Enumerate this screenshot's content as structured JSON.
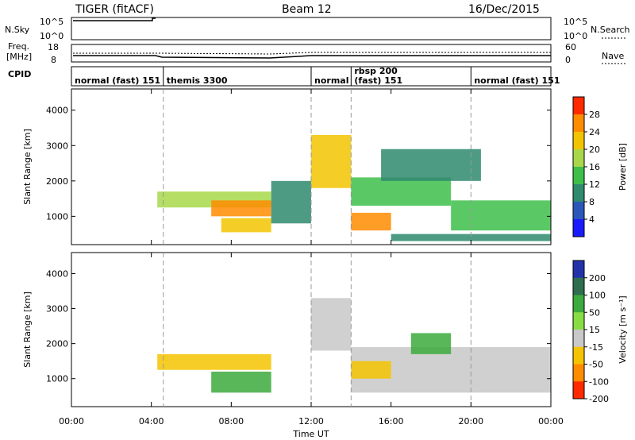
{
  "header": {
    "title": "TIGER (fitACF)",
    "beam": "Beam 12",
    "date": "16/Dec/2015"
  },
  "top_panels": {
    "nsky_label": "N.Sky",
    "nsky_ticks": [
      "10^5",
      "10^0"
    ],
    "nsearch_label": "N.Search",
    "nsearch_ticks": [
      "10^5",
      "10^0"
    ],
    "freq_label_1": "Freq.",
    "freq_label_2": "[MHz]",
    "freq_ticks": [
      "18",
      "8"
    ],
    "nave_label": "Nave",
    "nave_ticks": [
      "60",
      "0"
    ],
    "cpid_label": "CPID"
  },
  "modes": [
    {
      "label": "normal (fast) 151",
      "start_h": 0.0
    },
    {
      "label": "themis 3300",
      "start_h": 4.6
    },
    {
      "label": "normal",
      "start_h": 12.0
    },
    {
      "label": "rbsp 200",
      "start_h": 14.0,
      "sub": "(fast) 151"
    },
    {
      "label": "normal (fast) 151",
      "start_h": 20.0
    }
  ],
  "chart_data": [
    {
      "type": "heatmap",
      "title": "",
      "xlabel": "Time UT",
      "ylabel": "Slant Range [km]",
      "xlim": [
        0,
        24
      ],
      "ylim": [
        200,
        4600
      ],
      "x_ticks": [
        "00:00",
        "04:00",
        "08:00",
        "12:00",
        "16:00",
        "20:00",
        "00:00"
      ],
      "y_ticks": [
        "1000",
        "2000",
        "3000",
        "4000"
      ],
      "colorbar": {
        "label": "Power [dB]",
        "ticks": [
          "4",
          "8",
          "12",
          "16",
          "20",
          "24",
          "28"
        ],
        "range": [
          0,
          32
        ],
        "colors": [
          "#1a1aff",
          "#2b57b8",
          "#2f8a6e",
          "#3dbf4a",
          "#a8d84a",
          "#f2c400",
          "#ff8c00",
          "#ff2a00"
        ]
      },
      "bands": [
        {
          "t0": 4.3,
          "t1": 10.0,
          "r0": 1250,
          "r1": 1700,
          "v": 17
        },
        {
          "t0": 7.0,
          "t1": 10.0,
          "r0": 1000,
          "r1": 1450,
          "v": 25
        },
        {
          "t0": 7.5,
          "t1": 10.0,
          "r0": 550,
          "r1": 950,
          "v": 20
        },
        {
          "t0": 10.0,
          "t1": 12.0,
          "r0": 800,
          "r1": 2000,
          "v": 8
        },
        {
          "t0": 12.0,
          "t1": 14.0,
          "r0": 1800,
          "r1": 3300,
          "v": 20
        },
        {
          "t0": 14.0,
          "t1": 16.0,
          "r0": 600,
          "r1": 1100,
          "v": 25
        },
        {
          "t0": 14.0,
          "t1": 19.0,
          "r0": 1300,
          "r1": 2100,
          "v": 14
        },
        {
          "t0": 19.0,
          "t1": 24.0,
          "r0": 600,
          "r1": 1450,
          "v": 12
        },
        {
          "t0": 16.0,
          "t1": 24.0,
          "r0": 300,
          "r1": 500,
          "v": 8
        },
        {
          "t0": 15.5,
          "t1": 20.5,
          "r0": 2000,
          "r1": 2900,
          "v": 8
        }
      ]
    },
    {
      "type": "heatmap",
      "title": "",
      "xlabel": "Time UT",
      "ylabel": "Slant Range [km]",
      "xlim": [
        0,
        24
      ],
      "ylim": [
        200,
        4600
      ],
      "x_ticks": [
        "00:00",
        "04:00",
        "08:00",
        "12:00",
        "16:00",
        "20:00",
        "00:00"
      ],
      "y_ticks": [
        "1000",
        "2000",
        "3000",
        "4000"
      ],
      "colorbar": {
        "label": "Velocity [m s⁻¹]",
        "ticks": [
          "200",
          "100",
          "50",
          "15",
          "-15",
          "-50",
          "-100",
          "-200"
        ],
        "colors": [
          "#2233aa",
          "#2e6e4e",
          "#3caa3c",
          "#88dd44",
          "#c8c8c8",
          "#f5c400",
          "#ff8c00",
          "#ff2a00"
        ]
      },
      "bands": [
        {
          "t0": 4.3,
          "t1": 10.0,
          "r0": 1250,
          "r1": 1700,
          "v": -15
        },
        {
          "t0": 7.0,
          "t1": 10.0,
          "r0": 600,
          "r1": 1200,
          "v": 50
        },
        {
          "t0": 12.0,
          "t1": 14.0,
          "r0": 1800,
          "r1": 3300,
          "v": 0
        },
        {
          "t0": 14.0,
          "t1": 24.0,
          "r0": 600,
          "r1": 1900,
          "v": 0
        },
        {
          "t0": 14.0,
          "t1": 16.0,
          "r0": 1000,
          "r1": 1500,
          "v": -30
        },
        {
          "t0": 17.0,
          "t1": 19.0,
          "r0": 1700,
          "r1": 2300,
          "v": 50
        }
      ]
    }
  ]
}
